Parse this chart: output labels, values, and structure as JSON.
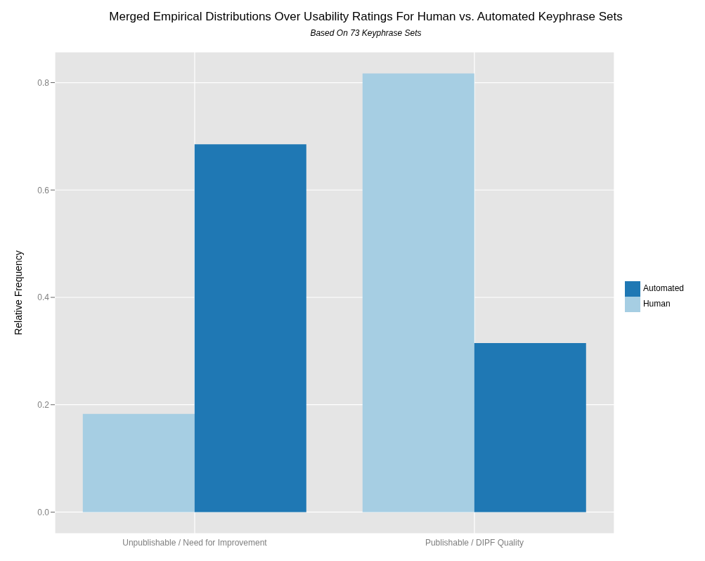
{
  "chart_data": {
    "type": "bar",
    "title": "Merged Empirical Distributions Over Usability Ratings For Human vs. Automated Keyphrase Sets",
    "subtitle": "Based On 73 Keyphrase Sets",
    "ylabel": "Relative Frequency",
    "categories": [
      "Unpublishable / Need for Improvement",
      "Publishable / DIPF Quality"
    ],
    "series": [
      {
        "name": "Human",
        "color": "#a6cee3",
        "values": [
          0.183,
          0.817
        ]
      },
      {
        "name": "Automated",
        "color": "#1f78b4",
        "values": [
          0.685,
          0.315
        ]
      }
    ],
    "ylim": [
      -0.04,
      0.857
    ],
    "yticks": [
      {
        "value": 0,
        "label": "0.0"
      },
      {
        "value": 0.2,
        "label": "0.2"
      },
      {
        "value": 0.4,
        "label": "0.4"
      },
      {
        "value": 0.6,
        "label": "0.6"
      },
      {
        "value": 0.8,
        "label": "0.8"
      }
    ],
    "grid": true,
    "legend": "right"
  }
}
